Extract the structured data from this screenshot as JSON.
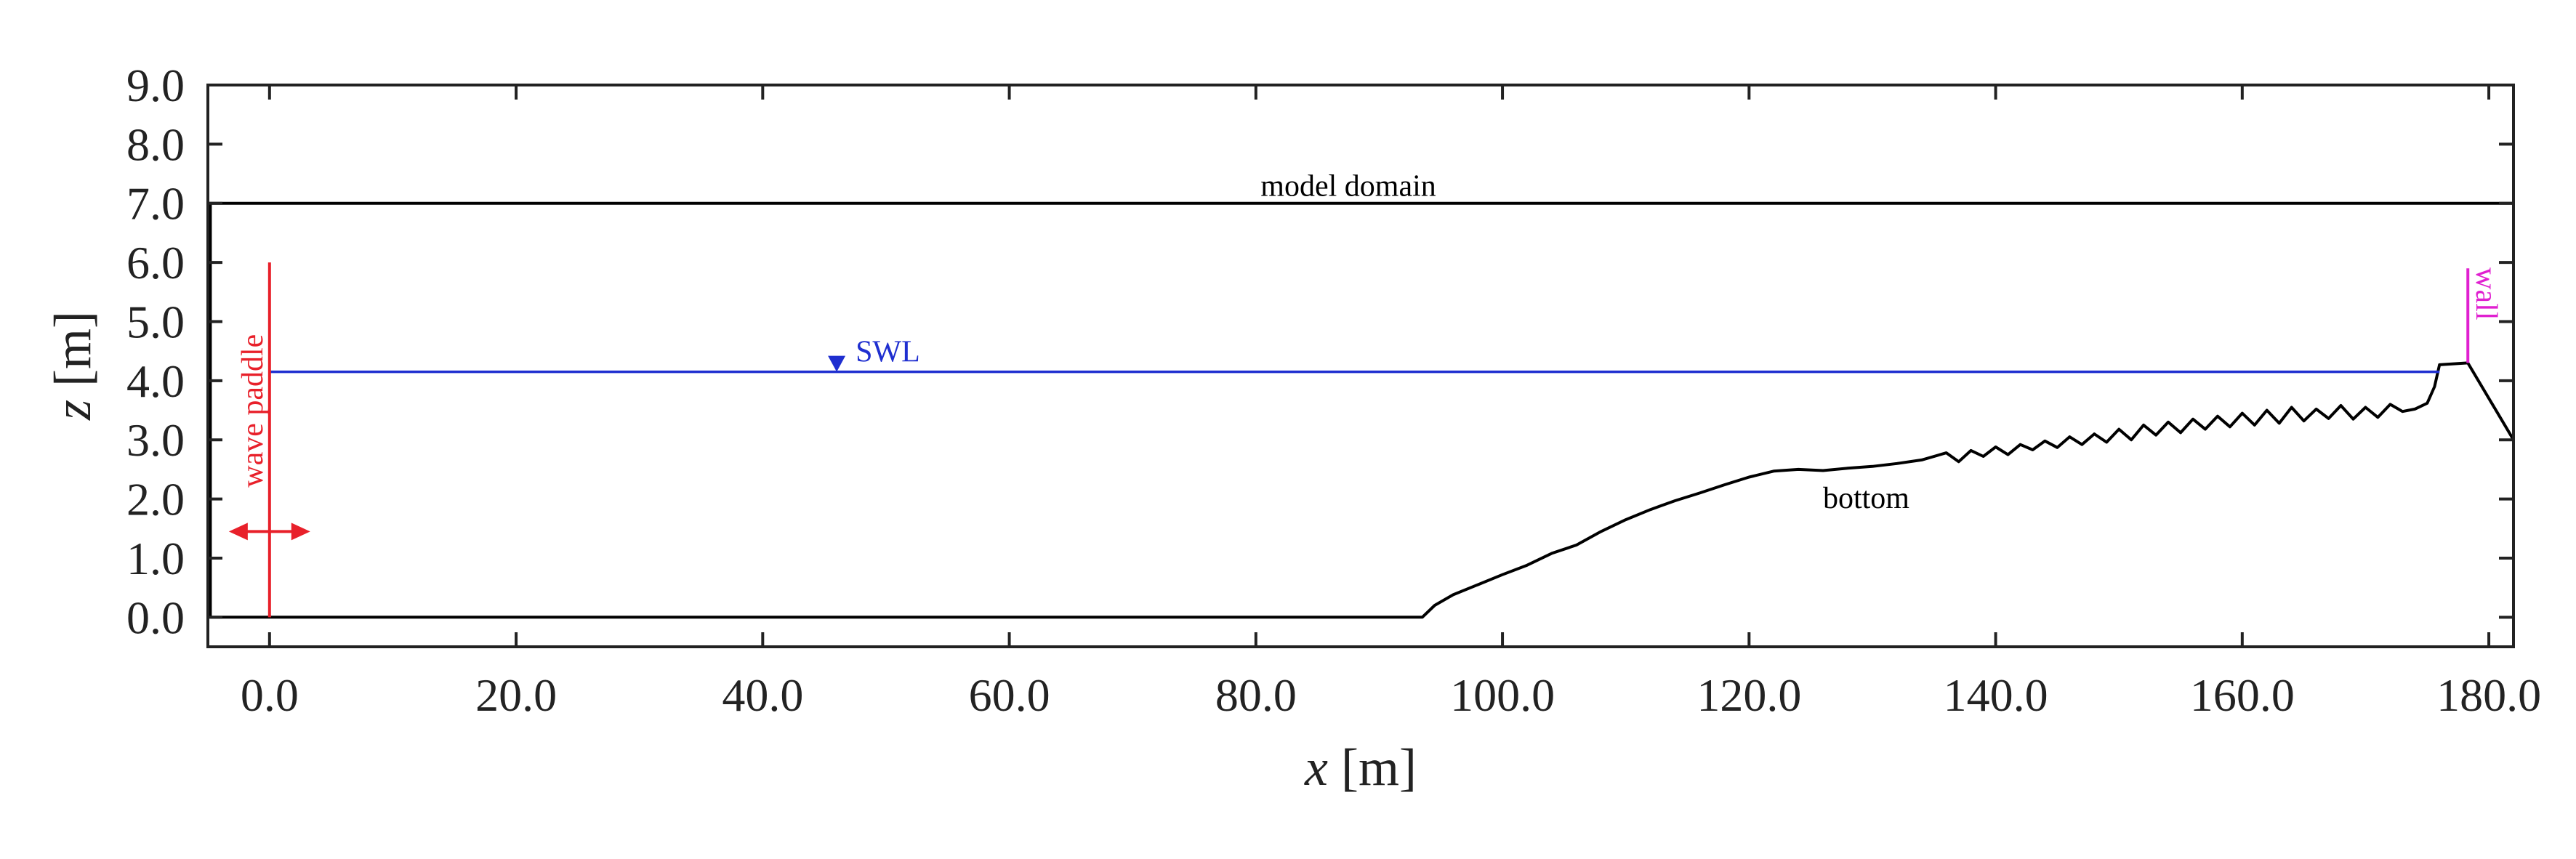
{
  "chart_data": {
    "type": "line",
    "xlabel_var": "x",
    "xlabel_unit": "[m]",
    "ylabel_var": "z",
    "ylabel_unit": "[m]",
    "xlim": [
      -5,
      182
    ],
    "ylim": [
      -0.5,
      9.0
    ],
    "x_ticks": [
      "0.0",
      "20.0",
      "40.0",
      "60.0",
      "80.0",
      "100.0",
      "120.0",
      "140.0",
      "160.0",
      "180.0"
    ],
    "y_ticks": [
      "0.0",
      "1.0",
      "2.0",
      "3.0",
      "4.0",
      "5.0",
      "6.0",
      "7.0",
      "8.0",
      "9.0"
    ],
    "colors": {
      "black": "#000000",
      "paddle": "#e8202a",
      "swl": "#1f2fd0",
      "wall": "#e020d0"
    },
    "series": [
      {
        "name": "model domain",
        "color": "#000000",
        "x": [
          -4.8,
          -4.8,
          182,
          182
        ],
        "y": [
          0.0,
          7.0,
          7.0,
          3.0
        ]
      },
      {
        "name": "bottom",
        "color": "#000000",
        "x": [
          -4.8,
          93.5,
          94.5,
          96,
          98,
          100,
          102,
          104,
          106,
          108,
          110,
          112,
          114,
          116,
          118,
          120,
          122,
          124,
          126,
          128,
          130,
          132,
          134,
          136,
          137,
          138,
          139,
          140,
          141,
          142,
          143,
          144,
          145,
          146,
          147,
          148,
          149,
          150,
          151,
          152,
          153,
          154,
          155,
          156,
          157,
          158,
          159,
          160,
          161,
          162,
          163,
          164,
          165,
          166,
          167,
          168,
          169,
          170,
          171,
          172,
          173,
          174,
          175,
          175.6,
          176,
          178.3,
          182
        ],
        "y": [
          0.0,
          0.0,
          0.2,
          0.38,
          0.55,
          0.72,
          0.88,
          1.08,
          1.22,
          1.45,
          1.65,
          1.82,
          1.97,
          2.1,
          2.24,
          2.37,
          2.47,
          2.5,
          2.48,
          2.52,
          2.55,
          2.6,
          2.66,
          2.78,
          2.63,
          2.82,
          2.72,
          2.88,
          2.75,
          2.92,
          2.83,
          2.98,
          2.87,
          3.05,
          2.92,
          3.1,
          2.96,
          3.18,
          3.0,
          3.25,
          3.08,
          3.3,
          3.12,
          3.35,
          3.18,
          3.4,
          3.22,
          3.45,
          3.25,
          3.5,
          3.28,
          3.55,
          3.32,
          3.52,
          3.36,
          3.58,
          3.35,
          3.55,
          3.38,
          3.6,
          3.48,
          3.52,
          3.62,
          3.9,
          4.27,
          4.3,
          3.0
        ]
      }
    ],
    "annotations": {
      "domain_label": "model domain",
      "bottom_label": "bottom",
      "swl_label": "SWL",
      "swl_level": 4.15,
      "swl_marker_x": 46,
      "swl_x_range": [
        0,
        176
      ],
      "paddle_label": "wave paddle",
      "paddle_x": 0,
      "paddle_z_range": [
        0,
        6.0
      ],
      "paddle_arrow_z": 1.45,
      "paddle_arrow_x_range": [
        -3.3,
        3.3
      ],
      "wall_label": "wall",
      "wall_x": 178.3,
      "wall_z_range": [
        4.3,
        5.9
      ]
    }
  }
}
